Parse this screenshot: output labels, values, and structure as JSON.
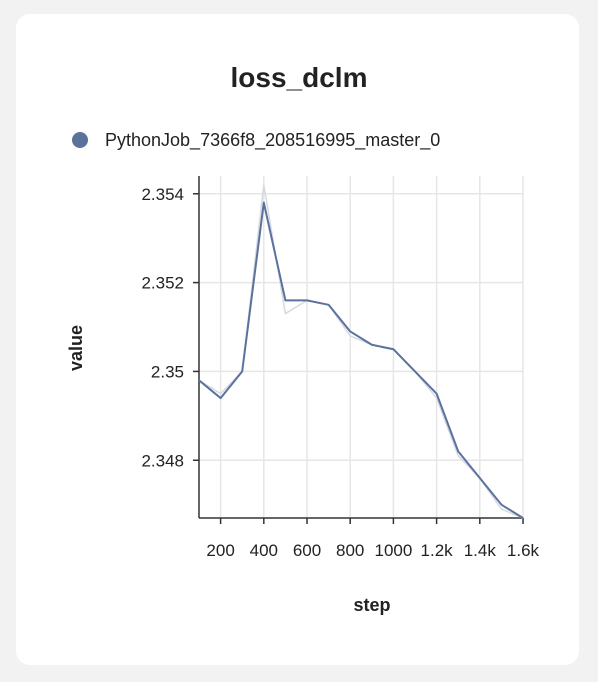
{
  "chart_data": {
    "type": "line",
    "title": "loss_dclm",
    "xlabel": "step",
    "ylabel": "value",
    "xlim": [
      100,
      1600
    ],
    "ylim": [
      2.3467,
      2.3544
    ],
    "x_ticks": [
      200,
      400,
      600,
      800,
      1000,
      1200,
      1400,
      1600
    ],
    "x_tick_labels": [
      "200",
      "400",
      "600",
      "800",
      "1000",
      "1.2k",
      "1.4k",
      "1.6k"
    ],
    "y_ticks": [
      2.348,
      2.35,
      2.352,
      2.354
    ],
    "y_tick_labels": [
      "2.348",
      "2.35",
      "2.352",
      "2.354"
    ],
    "grid": true,
    "legend_position": "top-left",
    "series": [
      {
        "name": "PythonJob_7366f8_208516995_master_0",
        "color": "#5b729c",
        "x": [
          100,
          200,
          300,
          400,
          500,
          600,
          700,
          800,
          900,
          1000,
          1100,
          1200,
          1300,
          1400,
          1500,
          1600
        ],
        "values": [
          2.3498,
          2.3494,
          2.35,
          2.3538,
          2.3516,
          2.3516,
          2.3515,
          2.3509,
          2.3506,
          2.3505,
          2.35,
          2.3495,
          2.3482,
          2.3476,
          2.347,
          2.3467
        ],
        "raw_values": [
          2.3498,
          2.3495,
          2.35,
          2.3542,
          2.3513,
          2.3516,
          2.3515,
          2.3508,
          2.3506,
          2.3505,
          2.35,
          2.3494,
          2.3481,
          2.3476,
          2.3469,
          2.3467
        ],
        "raw_color": "#d5d9e1"
      }
    ]
  }
}
